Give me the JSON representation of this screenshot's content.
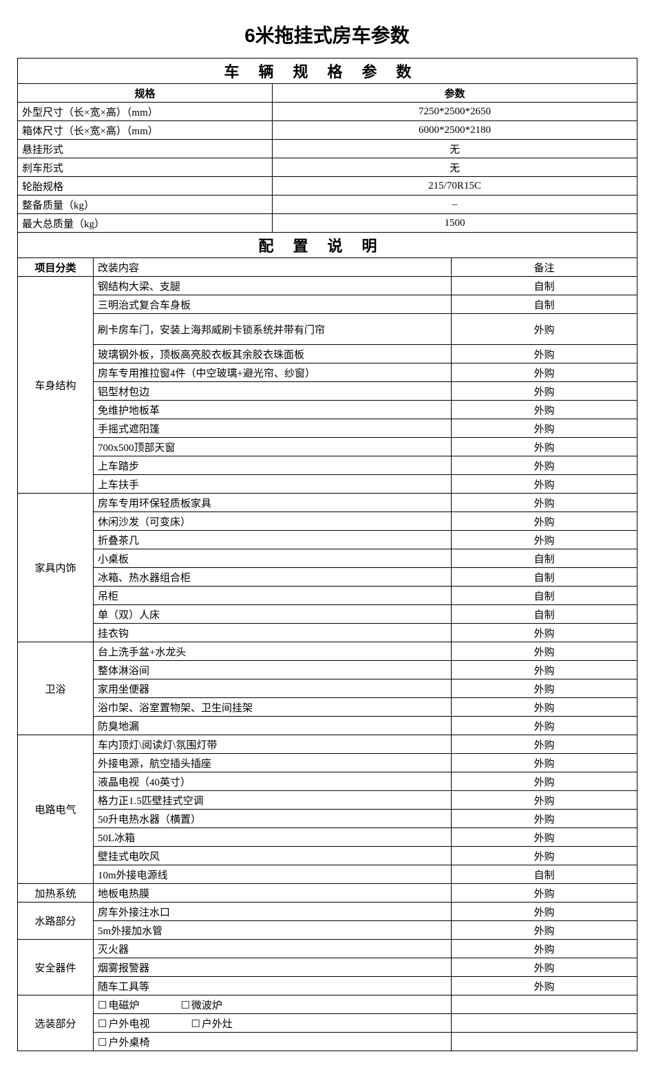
{
  "title": "6米拖挂式房车参数",
  "section1_title": "车辆规格参数",
  "spec_header_left": "规格",
  "spec_header_right": "参数",
  "specs": [
    {
      "label": "外型尺寸（长×宽×高）（mm）",
      "value": "7250*2500*2650"
    },
    {
      "label": "箱体尺寸（长×宽×高）（mm）",
      "value": "6000*2500*2180"
    },
    {
      "label": "悬挂形式",
      "value": "无"
    },
    {
      "label": "刹车形式",
      "value": "无"
    },
    {
      "label": "轮胎规格",
      "value": "215/70R15C"
    },
    {
      "label": "整备质量（kg）",
      "value": "–"
    },
    {
      "label": "最大总质量（kg）",
      "value": "1500"
    }
  ],
  "section2_title": "配置说明",
  "cfg_header_cat": "项目分类",
  "cfg_header_content": "改装内容",
  "cfg_header_note": "备注",
  "note_self": "自制",
  "note_buy": "外购",
  "groups": [
    {
      "cat": "车身结构",
      "rows": [
        {
          "content": "钢结构大梁、支腿",
          "note": "自制"
        },
        {
          "content": "三明治式复合车身板",
          "note": "自制"
        },
        {
          "content": "刷卡房车门，安装上海邦威刷卡锁系统并带有门帘",
          "note": "外购",
          "tall": true
        },
        {
          "content": "玻璃钢外板，顶板高亮胶衣板其余胶衣珠面板",
          "note": "外购"
        },
        {
          "content": "房车专用推拉窗4件（中空玻璃+避光帘、纱窗）",
          "note": "外购"
        },
        {
          "content": "铝型材包边",
          "note": "外购"
        },
        {
          "content": "免维护地板革",
          "note": "外购"
        },
        {
          "content": "手摇式遮阳篷",
          "note": "外购"
        },
        {
          "content": "700x500顶部天窗",
          "note": "外购"
        },
        {
          "content": "上车踏步",
          "note": "外购"
        },
        {
          "content": "上车扶手",
          "note": "外购"
        }
      ]
    },
    {
      "cat": "家具内饰",
      "rows": [
        {
          "content": "房车专用环保轻质板家具",
          "note": "外购"
        },
        {
          "content": "休闲沙发（可变床）",
          "note": "外购"
        },
        {
          "content": "折叠茶几",
          "note": "外购"
        },
        {
          "content": "小桌板",
          "note": "自制"
        },
        {
          "content": "冰箱、热水器组合柜",
          "note": "自制"
        },
        {
          "content": "吊柜",
          "note": "自制"
        },
        {
          "content": "单（双）人床",
          "note": "自制"
        },
        {
          "content": "挂衣钩",
          "note": "外购"
        }
      ]
    },
    {
      "cat": "卫浴",
      "rows": [
        {
          "content": "台上洗手盆+水龙头",
          "note": "外购"
        },
        {
          "content": "整体淋浴间",
          "note": "外购"
        },
        {
          "content": "家用坐便器",
          "note": "外购"
        },
        {
          "content": "浴巾架、浴室置物架、卫生间挂架",
          "note": "外购"
        },
        {
          "content": "防臭地漏",
          "note": "外购"
        }
      ]
    },
    {
      "cat": "电路电气",
      "rows": [
        {
          "content": "车内顶灯\\阅读灯\\氛围灯带",
          "note": "外购"
        },
        {
          "content": "外接电源，航空插头插座",
          "note": "外购"
        },
        {
          "content": "液晶电视（40英寸）",
          "note": "外购"
        },
        {
          "content": "格力正1.5匹壁挂式空调",
          "note": "外购"
        },
        {
          "content": "50升电热水器（横置）",
          "note": "外购"
        },
        {
          "content": "50L冰箱",
          "note": "外购"
        },
        {
          "content": "壁挂式电吹风",
          "note": "外购"
        },
        {
          "content": "10m外接电源线",
          "note": "自制"
        }
      ]
    },
    {
      "cat": "加热系统",
      "rows": [
        {
          "content": "地板电热膜",
          "note": "外购"
        }
      ]
    },
    {
      "cat": "水路部分",
      "rows": [
        {
          "content": "房车外接注水口",
          "note": "外购"
        },
        {
          "content": "5m外接加水管",
          "note": "外购"
        }
      ]
    },
    {
      "cat": "安全器件",
      "rows": [
        {
          "content": "灭火器",
          "note": "外购"
        },
        {
          "content": "烟雾报警器",
          "note": "外购"
        },
        {
          "content": "随车工具等",
          "note": "外购"
        }
      ]
    }
  ],
  "options_cat": "选装部分",
  "options": [
    [
      "电磁炉",
      "微波炉"
    ],
    [
      "户外电视",
      "户外灶"
    ],
    [
      "户外桌椅"
    ]
  ],
  "col_widths": {
    "cat": 110,
    "content": 520,
    "note": 270
  }
}
